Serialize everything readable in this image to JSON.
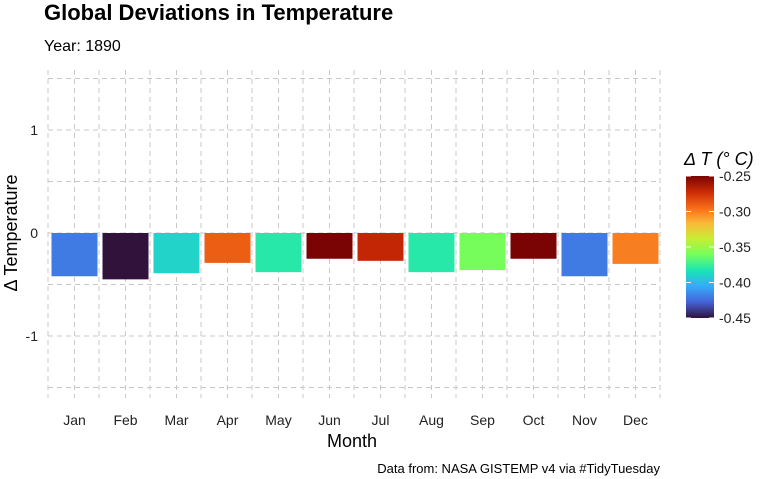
{
  "chart_data": {
    "type": "bar",
    "title": "Global Deviations in Temperature",
    "subtitle": "Year: 1890",
    "xlabel": "Month",
    "ylabel": "Δ Temperature",
    "caption": "Data from: NASA GISTEMP v4 via #TidyTuesday",
    "categories": [
      "Jan",
      "Feb",
      "Mar",
      "Apr",
      "May",
      "Jun",
      "Jul",
      "Aug",
      "Sep",
      "Oct",
      "Nov",
      "Dec"
    ],
    "values": [
      -0.42,
      -0.45,
      -0.39,
      -0.29,
      -0.38,
      -0.25,
      -0.27,
      -0.38,
      -0.36,
      -0.25,
      -0.42,
      -0.3
    ],
    "ylim": [
      -1.5,
      1.5
    ],
    "y_ticks": [
      -1,
      0,
      1
    ],
    "grid": true,
    "legend": {
      "title": "Δ T (° C)",
      "position": "right",
      "range": [
        -0.45,
        -0.25
      ],
      "ticks": [
        -0.25,
        -0.3,
        -0.35,
        -0.4,
        -0.45
      ],
      "tick_labels": [
        "-0.25",
        "-0.30",
        "-0.35",
        "-0.40",
        "-0.45"
      ],
      "colormap": "turbo",
      "colors": [
        "#30123b",
        "#4662d7",
        "#36aaf9",
        "#1ae4b6",
        "#72fe5e",
        "#c7ef34",
        "#faba39",
        "#f66b19",
        "#ca2a04",
        "#7a0403"
      ]
    }
  }
}
